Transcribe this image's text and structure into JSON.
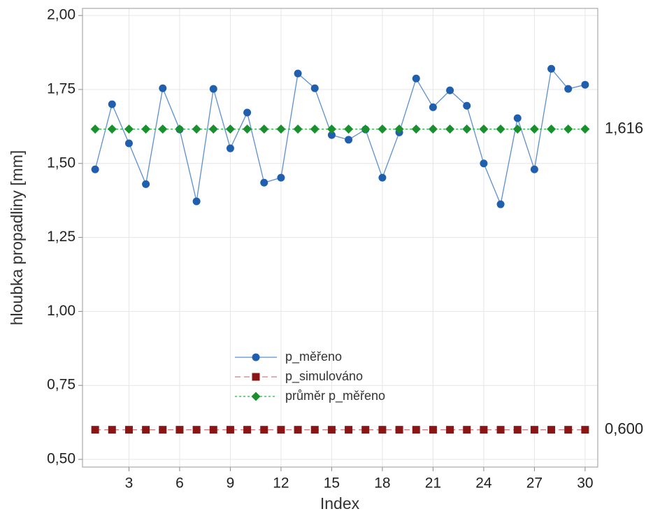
{
  "chart_data": {
    "type": "line",
    "x_label": "Index",
    "y_label": "hloubka propadliny  [mm]",
    "x": [
      1,
      2,
      3,
      4,
      5,
      6,
      7,
      8,
      9,
      10,
      11,
      12,
      13,
      14,
      15,
      16,
      17,
      18,
      19,
      20,
      21,
      22,
      23,
      24,
      25,
      26,
      27,
      28,
      29,
      30
    ],
    "series": [
      {
        "name": "p_měřeno",
        "color": "#1f5fad",
        "line_color": "#5b8fd0",
        "marker": "circle",
        "dash": "solid",
        "values": [
          1.48,
          1.7,
          1.568,
          1.43,
          1.754,
          1.615,
          1.372,
          1.752,
          1.551,
          1.672,
          1.435,
          1.452,
          1.804,
          1.754,
          1.596,
          1.58,
          1.615,
          1.452,
          1.605,
          1.787,
          1.69,
          1.747,
          1.695,
          1.5,
          1.362,
          1.653,
          1.48,
          1.82,
          1.752,
          1.766
        ]
      },
      {
        "name": "p_simulováno",
        "color": "#8b1414",
        "line_color": "#d07a80",
        "marker": "square",
        "dash": "dashed",
        "values": [
          0.6,
          0.6,
          0.6,
          0.6,
          0.6,
          0.6,
          0.6,
          0.6,
          0.6,
          0.6,
          0.6,
          0.6,
          0.6,
          0.6,
          0.6,
          0.6,
          0.6,
          0.6,
          0.6,
          0.6,
          0.6,
          0.6,
          0.6,
          0.6,
          0.6,
          0.6,
          0.6,
          0.6,
          0.6,
          0.6
        ]
      },
      {
        "name": "průměr p_měřeno",
        "color": "#1a8f2e",
        "line_color": "#2fae4a",
        "marker": "diamond",
        "dash": "dotted",
        "values": [
          1.616,
          1.616,
          1.616,
          1.616,
          1.616,
          1.616,
          1.616,
          1.616,
          1.616,
          1.616,
          1.616,
          1.616,
          1.616,
          1.616,
          1.616,
          1.616,
          1.616,
          1.616,
          1.616,
          1.616,
          1.616,
          1.616,
          1.616,
          1.616,
          1.616,
          1.616,
          1.616,
          1.616,
          1.616,
          1.616
        ]
      }
    ],
    "annotations": [
      {
        "label": "1,616",
        "value": 1.616
      },
      {
        "label": "0,600",
        "value": 0.6
      }
    ],
    "xlim": [
      0.25,
      30.75
    ],
    "ylim": [
      0.474,
      2.024
    ],
    "xticks": [
      3,
      6,
      9,
      12,
      15,
      18,
      21,
      24,
      27,
      30
    ],
    "yticks": [
      {
        "value": 0.5,
        "label": "0,50"
      },
      {
        "value": 0.75,
        "label": "0,75"
      },
      {
        "value": 1.0,
        "label": "1,00"
      },
      {
        "value": 1.25,
        "label": "1,25"
      },
      {
        "value": 1.5,
        "label": "1,50"
      },
      {
        "value": 1.75,
        "label": "1,75"
      },
      {
        "value": 2.0,
        "label": "2,00"
      }
    ],
    "grid": true,
    "legend_position": "lower center"
  }
}
